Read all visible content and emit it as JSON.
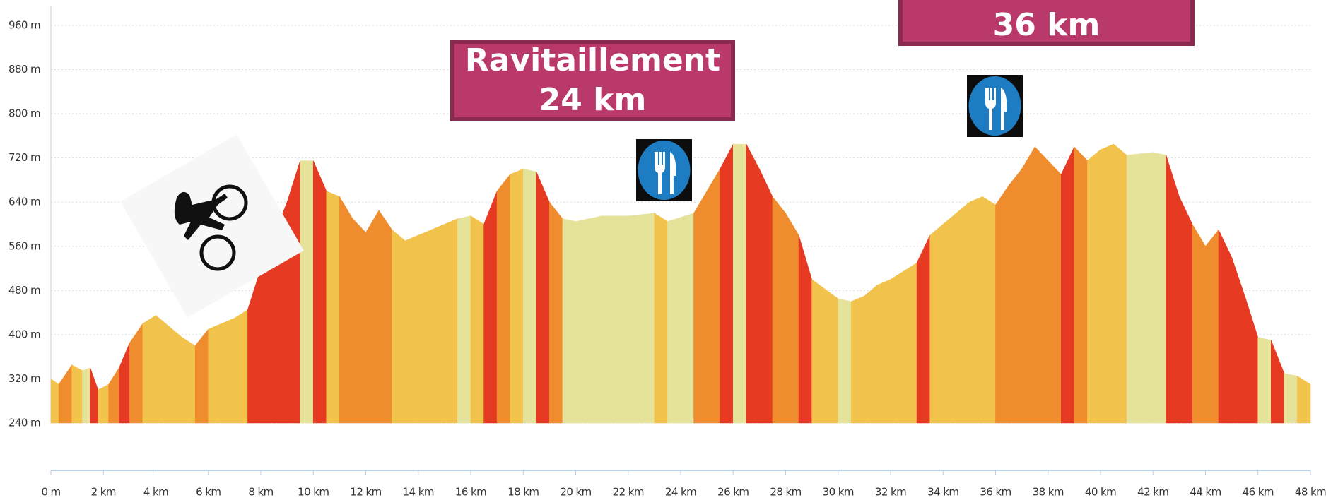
{
  "chart_data": {
    "type": "elevation",
    "x": [
      0,
      0.3,
      0.8,
      1.2,
      1.5,
      1.8,
      2.2,
      2.6,
      3,
      3.5,
      4,
      4.5,
      5,
      5.5,
      6,
      7,
      7.5,
      8,
      8.5,
      9,
      9.5,
      10,
      10.5,
      11,
      11.5,
      12,
      12.5,
      13,
      13.5,
      14,
      15,
      15.5,
      16,
      16.5,
      17,
      17.5,
      18,
      18.5,
      19,
      19.5,
      20,
      21,
      22,
      23,
      23.5,
      24.5,
      25,
      25.5,
      26,
      26.5,
      27,
      27.5,
      28,
      28.5,
      29,
      30,
      30.5,
      31,
      31.5,
      32,
      33,
      33.5,
      34,
      34.5,
      35,
      35.5,
      36,
      36.5,
      37,
      37.5,
      38,
      38.5,
      39,
      39.5,
      40,
      40.5,
      41,
      42,
      42.5,
      43,
      43.5,
      44,
      44.5,
      45,
      45.5,
      46,
      46.5,
      47,
      47.5,
      48
    ],
    "values": [
      320,
      310,
      345,
      335,
      340,
      300,
      310,
      340,
      385,
      420,
      435,
      415,
      395,
      380,
      410,
      430,
      445,
      520,
      580,
      640,
      715,
      715,
      660,
      650,
      610,
      585,
      625,
      590,
      570,
      580,
      600,
      610,
      615,
      600,
      660,
      690,
      700,
      695,
      640,
      610,
      605,
      615,
      615,
      620,
      605,
      620,
      660,
      700,
      745,
      745,
      700,
      650,
      620,
      580,
      500,
      465,
      460,
      470,
      490,
      500,
      530,
      580,
      600,
      620,
      640,
      650,
      635,
      670,
      700,
      740,
      715,
      690,
      740,
      715,
      735,
      745,
      725,
      730,
      725,
      650,
      600,
      560,
      590,
      540,
      470,
      395,
      390,
      330,
      325,
      310
    ],
    "colors": [
      "#e5e39a",
      "#f2c34c",
      "#ef8d2e",
      "#e63b22"
    ],
    "xlim": [
      0,
      48
    ],
    "ylim": [
      240,
      960
    ],
    "xticks": [
      {
        "value": 0,
        "label": "0 m"
      },
      {
        "value": 2,
        "label": "2 km"
      },
      {
        "value": 4,
        "label": "4 km"
      },
      {
        "value": 6,
        "label": "6 km"
      },
      {
        "value": 8,
        "label": "8 km"
      },
      {
        "value": 10,
        "label": "10 km"
      },
      {
        "value": 12,
        "label": "12 km"
      },
      {
        "value": 14,
        "label": "14 km"
      },
      {
        "value": 16,
        "label": "16 km"
      },
      {
        "value": 18,
        "label": "18 km"
      },
      {
        "value": 20,
        "label": "20 km"
      },
      {
        "value": 22,
        "label": "22 km"
      },
      {
        "value": 24,
        "label": "24 km"
      },
      {
        "value": 26,
        "label": "26 km"
      },
      {
        "value": 28,
        "label": "28 km"
      },
      {
        "value": 30,
        "label": "30 km"
      },
      {
        "value": 32,
        "label": "32 km"
      },
      {
        "value": 34,
        "label": "34 km"
      },
      {
        "value": 36,
        "label": "36 km"
      },
      {
        "value": 38,
        "label": "38 km"
      },
      {
        "value": 40,
        "label": "40 km"
      },
      {
        "value": 42,
        "label": "42 km"
      },
      {
        "value": 44,
        "label": "44 km"
      },
      {
        "value": 46,
        "label": "46 km"
      },
      {
        "value": 48,
        "label": "48 km"
      }
    ],
    "yticks": [
      {
        "value": 240,
        "label": "240 m"
      },
      {
        "value": 320,
        "label": "320 m"
      },
      {
        "value": 400,
        "label": "400 m"
      },
      {
        "value": 480,
        "label": "480 m"
      },
      {
        "value": 560,
        "label": "560 m"
      },
      {
        "value": 640,
        "label": "640 m"
      },
      {
        "value": 720,
        "label": "720 m"
      },
      {
        "value": 800,
        "label": "800 m"
      },
      {
        "value": 880,
        "label": "880 m"
      },
      {
        "value": 960,
        "label": "960 m"
      }
    ],
    "grid": true,
    "annotations": [
      {
        "lines": [
          "Ravitaillement",
          "24 km"
        ]
      },
      {
        "lines": [
          "36 km"
        ]
      }
    ]
  }
}
